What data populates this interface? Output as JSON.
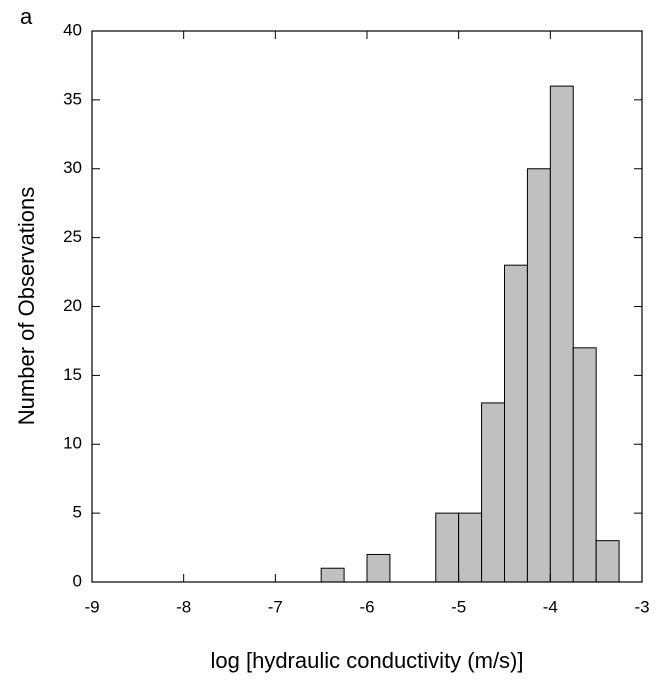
{
  "chart_data": {
    "type": "histogram",
    "panel_label": "a",
    "xlabel": "log [hydraulic conductivity (m/s)]",
    "ylabel": "Number of Observations",
    "bins": [
      -6.5,
      -6.25,
      -6,
      -5.75,
      -5.5,
      -5.25,
      -5,
      -4.75,
      -4.5,
      -4.25,
      -4,
      -3.75,
      -3.5,
      -3.25
    ],
    "values": [
      1,
      0,
      2,
      0,
      0,
      5,
      5,
      13,
      23,
      30,
      36,
      17,
      3
    ],
    "color": "#c0c0c0",
    "xlim": [
      -9,
      -3
    ],
    "xticks": [
      -9,
      -8,
      -7,
      -6,
      -5,
      -4,
      -3
    ],
    "ylim": [
      0,
      40
    ],
    "yticks": [
      0,
      5,
      10,
      15,
      20,
      25,
      30,
      35,
      40
    ]
  }
}
